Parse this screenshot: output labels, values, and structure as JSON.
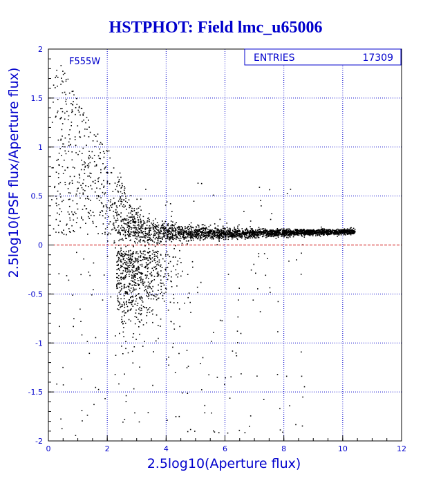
{
  "chart_data": {
    "type": "scatter",
    "title": "HSTPHOT: Field lmc_u65006",
    "xlabel": "2.5log10(Aperture flux)",
    "ylabel": "2.5log10(PSF flux/Aperture flux)",
    "xlim": [
      0,
      12
    ],
    "ylim": [
      -2,
      2
    ],
    "x_ticks": [
      "0",
      "2",
      "4",
      "6",
      "8",
      "10",
      "12"
    ],
    "y_ticks": [
      "-2",
      "-1.5",
      "-1",
      "-0.5",
      "0",
      "0.5",
      "1",
      "1.5",
      "2"
    ],
    "grid": true,
    "reference_line": {
      "y": 0
    },
    "filter_label": "F555W",
    "stats": {
      "label": "ENTRIES",
      "value": "17309"
    },
    "point_count": 17309
  },
  "colors": {
    "text": "#0000cc",
    "grid": "#0000cc",
    "points": "#000000",
    "reference_line": "#cc0000",
    "background": "#ffffff"
  }
}
